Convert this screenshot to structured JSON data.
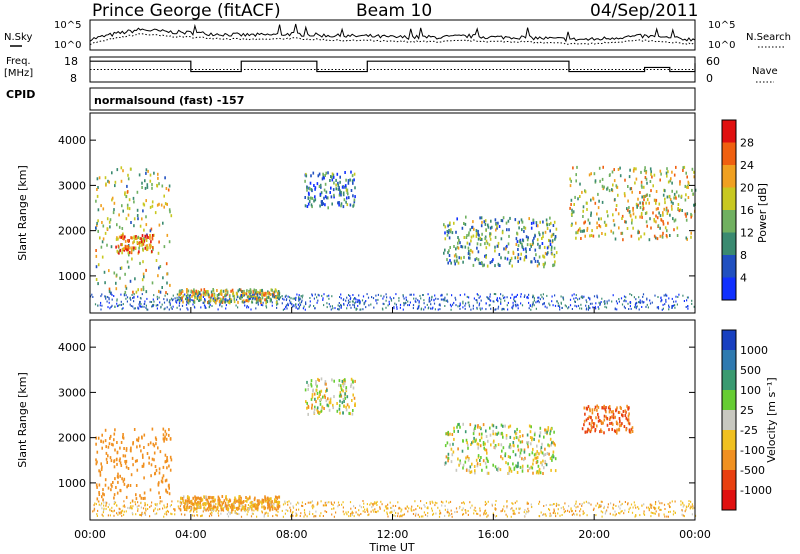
{
  "header": {
    "station": "Prince George (fitACF)",
    "beam": "Beam 10",
    "date": "04/Sep/2011"
  },
  "top_panels": {
    "nsky_label": "N.Sky",
    "nsearch_label": "N.Search",
    "nsky_ticks": [
      "10^5",
      "10^0"
    ],
    "nsearch_ticks": [
      "10^5",
      "10^0"
    ],
    "freq_label": [
      "Freq.",
      "[MHz]"
    ],
    "freq_ticks": [
      "18",
      "8"
    ],
    "nave_label": "Nave",
    "nave_ticks": [
      "60",
      "0"
    ],
    "cpid_label": "CPID",
    "cpid_text": "normalsound (fast) -157"
  },
  "chart_data": [
    {
      "type": "line",
      "name": "nsky-nsearch",
      "x": [
        0,
        1,
        2,
        3,
        4,
        5,
        6,
        7,
        8,
        9,
        10,
        11,
        12,
        13,
        14,
        15,
        16,
        17,
        18,
        19,
        20,
        21,
        22,
        23,
        24
      ],
      "series": [
        {
          "values": [
            0.3,
            0.55,
            0.75,
            0.65,
            0.6,
            0.55,
            0.5,
            0.5,
            0.55,
            0.5,
            0.45,
            0.45,
            0.4,
            0.4,
            0.4,
            0.45,
            0.4,
            0.4,
            0.35,
            0.3,
            0.3,
            0.4,
            0.45,
            0.35,
            0.3
          ]
        }
      ],
      "ylim": [
        0,
        1
      ]
    },
    {
      "type": "line",
      "name": "frequency-nave",
      "x": [
        0,
        1,
        2,
        3,
        4,
        5,
        6,
        7,
        8,
        9,
        10,
        11,
        12,
        13,
        14,
        15,
        16,
        17,
        18,
        19,
        20,
        21,
        22,
        23,
        24
      ],
      "series": [
        {
          "values": [
            16.0,
            16.0,
            16.0,
            16.0,
            11.0,
            11.0,
            16.0,
            16.0,
            16.0,
            11.0,
            11.0,
            16.0,
            16.0,
            16.0,
            16.0,
            16.0,
            16.0,
            16.0,
            16.0,
            11.0,
            11.0,
            11.0,
            13.0,
            11.0,
            15.0
          ]
        },
        {
          "values": [
            12.0,
            12.0,
            12.0,
            12.0,
            12.0,
            12.0,
            12.0,
            12.0,
            12.0,
            12.0,
            12.0,
            12.0,
            12.0,
            12.0,
            12.0,
            12.0,
            12.0,
            12.0,
            12.0,
            12.0,
            12.0,
            12.0,
            12.0,
            12.0,
            12.0
          ]
        }
      ],
      "ylim": [
        6,
        18
      ]
    },
    {
      "type": "heatmap",
      "name": "power",
      "ylabel": "Slant Range [km]",
      "xlim": [
        0,
        24
      ],
      "ylim": [
        180,
        4600
      ],
      "yticks": [
        "1000",
        "2000",
        "3000",
        "4000"
      ],
      "colorbar": {
        "label": "Power [dB]",
        "ticks": [
          "4",
          "8",
          "12",
          "16",
          "20",
          "24",
          "28"
        ],
        "colors": [
          "#1030ff",
          "#2050c0",
          "#3a8a70",
          "#70b060",
          "#c8c820",
          "#f0a020",
          "#f06010",
          "#e01010"
        ]
      },
      "features": [
        {
          "t": [
            0.2,
            3.2
          ],
          "r": [
            600,
            3400
          ],
          "level": 18
        },
        {
          "t": [
            1.0,
            2.5
          ],
          "r": [
            1500,
            1900
          ],
          "level": 26
        },
        {
          "t": [
            3.5,
            7.5
          ],
          "r": [
            400,
            700
          ],
          "level": 20
        },
        {
          "t": [
            8.5,
            10.5
          ],
          "r": [
            2500,
            3300
          ],
          "level": 10
        },
        {
          "t": [
            14.0,
            18.5
          ],
          "r": [
            1200,
            2300
          ],
          "level": 14
        },
        {
          "t": [
            19.0,
            24.0
          ],
          "r": [
            1800,
            3400
          ],
          "level": 20
        }
      ]
    },
    {
      "type": "heatmap",
      "name": "velocity",
      "ylabel": "Slant Range [km]",
      "xlabel": "Time UT",
      "xlim": [
        0,
        24
      ],
      "ylim": [
        180,
        4600
      ],
      "xticks": [
        "00:00",
        "04:00",
        "08:00",
        "12:00",
        "16:00",
        "20:00",
        "00:00"
      ],
      "yticks": [
        "1000",
        "2000",
        "3000",
        "4000"
      ],
      "colorbar": {
        "label": "Velocity [m s⁻¹]",
        "ticks": [
          "1000",
          "500",
          "100",
          "25",
          "-25",
          "-100",
          "-500",
          "-1000"
        ],
        "colors": [
          "#1840c0",
          "#2f7ab0",
          "#3a9a70",
          "#66cc33",
          "#c8c8c0",
          "#f0c020",
          "#f09020",
          "#e84010",
          "#e01010"
        ]
      },
      "features": [
        {
          "t": [
            0.2,
            3.2
          ],
          "r": [
            600,
            2200
          ],
          "level": -300
        },
        {
          "t": [
            3.5,
            7.5
          ],
          "r": [
            400,
            700
          ],
          "level": -150
        },
        {
          "t": [
            8.5,
            10.5
          ],
          "r": [
            2500,
            3300
          ],
          "level": 0
        },
        {
          "t": [
            14.0,
            18.5
          ],
          "r": [
            1200,
            2300
          ],
          "level": 0
        },
        {
          "t": [
            19.5,
            21.5
          ],
          "r": [
            2100,
            2700
          ],
          "level": -500
        }
      ]
    }
  ]
}
